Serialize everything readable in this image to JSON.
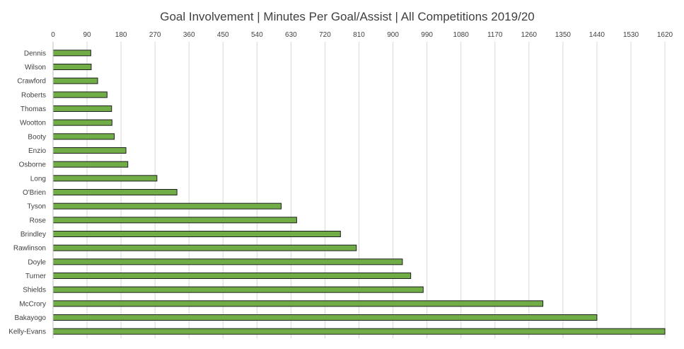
{
  "chart_data": {
    "type": "bar",
    "orientation": "horizontal",
    "title": "Goal Involvement | Minutes Per Goal/Assist | All Competitions 2019/20",
    "xlabel": "",
    "ylabel": "",
    "xlim": [
      0,
      1620
    ],
    "xticks": [
      0,
      90,
      180,
      270,
      360,
      450,
      540,
      630,
      720,
      810,
      900,
      990,
      1080,
      1170,
      1260,
      1350,
      1440,
      1530,
      1620
    ],
    "x_axis_position": "top",
    "grid": true,
    "legend": "none",
    "bar_color": "#70ad47",
    "categories": [
      "Dennis",
      "Wilson",
      "Crawford",
      "Roberts",
      "Thomas",
      "Wootton",
      "Booty",
      "Enzio",
      "Osborne",
      "Long",
      "O'Brien",
      "Tyson",
      "Rose",
      "Brindley",
      "Rawlinson",
      "Doyle",
      "Turner",
      "Shields",
      "McCrory",
      "Bakayogo",
      "Kelly-Evans"
    ],
    "values": [
      100,
      101,
      118,
      143,
      155,
      156,
      162,
      193,
      198,
      275,
      328,
      604,
      645,
      761,
      803,
      925,
      947,
      980,
      1297,
      1440,
      1620
    ]
  }
}
